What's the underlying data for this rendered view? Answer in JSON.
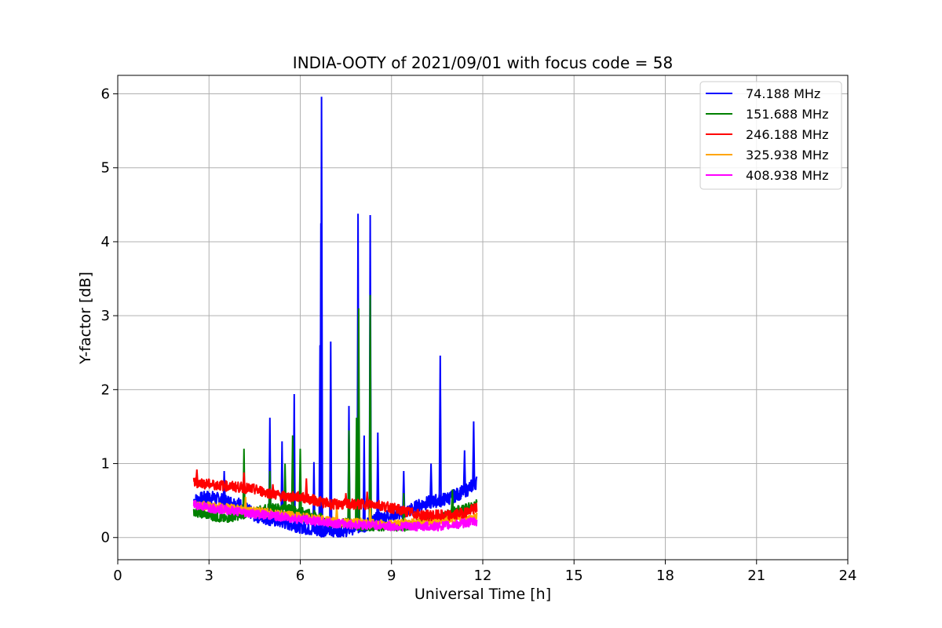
{
  "chart_data": {
    "type": "line",
    "title": "INDIA-OOTY of 2021/09/01 with focus code = 58",
    "xlabel": "Universal Time [h]",
    "ylabel": "Y-factor [dB]",
    "xlim": [
      0,
      24
    ],
    "ylim": [
      -0.3,
      6.25
    ],
    "x_ticks": [
      0,
      3,
      6,
      9,
      12,
      15,
      18,
      21,
      24
    ],
    "y_ticks": [
      0,
      1,
      2,
      3,
      4,
      5,
      6
    ],
    "grid": true,
    "legend_position": "top-right",
    "series": [
      {
        "name": "  74.188 MHz",
        "color": "#0000ff",
        "x": [
          2.5,
          3.0,
          3.5,
          4.0,
          4.5,
          5.0,
          5.5,
          6.0,
          6.5,
          6.7,
          7.0,
          7.5,
          7.9,
          8.1,
          8.3,
          8.5,
          9.0,
          9.5,
          10.0,
          10.5,
          10.6,
          11.0,
          11.5,
          11.8
        ],
        "values": [
          0.5,
          0.55,
          0.5,
          0.45,
          0.3,
          0.25,
          0.2,
          0.15,
          0.1,
          0.1,
          0.1,
          0.1,
          0.15,
          0.15,
          0.2,
          0.25,
          0.3,
          0.35,
          0.45,
          0.5,
          0.5,
          0.55,
          0.65,
          0.75
        ],
        "peaks": [
          [
            3.5,
            0.9
          ],
          [
            5.0,
            1.62
          ],
          [
            5.4,
            1.3
          ],
          [
            5.8,
            1.94
          ],
          [
            6.45,
            1.02
          ],
          [
            6.65,
            2.6
          ],
          [
            6.68,
            4.25
          ],
          [
            6.7,
            5.96
          ],
          [
            7.0,
            2.65
          ],
          [
            7.6,
            1.78
          ],
          [
            7.9,
            4.38
          ],
          [
            8.1,
            1.38
          ],
          [
            8.3,
            4.36
          ],
          [
            8.55,
            1.42
          ],
          [
            9.4,
            0.9
          ],
          [
            10.3,
            1.0
          ],
          [
            10.6,
            2.46
          ],
          [
            11.4,
            1.18
          ],
          [
            11.7,
            1.57
          ]
        ]
      },
      {
        "name": "151.688 MHz",
        "color": "#008000",
        "x": [
          2.5,
          3.0,
          3.5,
          4.0,
          4.5,
          5.0,
          5.5,
          6.0,
          6.5,
          7.0,
          7.5,
          8.0,
          8.5,
          9.0,
          9.5,
          10.0,
          10.5,
          11.0,
          11.5,
          11.8
        ],
        "values": [
          0.35,
          0.3,
          0.25,
          0.3,
          0.35,
          0.4,
          0.4,
          0.35,
          0.3,
          0.2,
          0.2,
          0.15,
          0.15,
          0.15,
          0.15,
          0.2,
          0.25,
          0.35,
          0.4,
          0.45
        ],
        "peaks": [
          [
            4.15,
            1.2
          ],
          [
            5.0,
            0.9
          ],
          [
            5.5,
            1.0
          ],
          [
            5.75,
            1.38
          ],
          [
            6.0,
            1.2
          ],
          [
            7.6,
            1.45
          ],
          [
            7.85,
            1.62
          ],
          [
            7.92,
            3.1
          ],
          [
            8.3,
            3.28
          ],
          [
            9.4,
            0.6
          ],
          [
            11.0,
            0.65
          ]
        ]
      },
      {
        "name": "246.188 MHz",
        "color": "#ff0000",
        "x": [
          2.5,
          3.0,
          3.5,
          4.0,
          4.5,
          5.0,
          5.5,
          6.0,
          6.5,
          7.0,
          7.5,
          8.0,
          8.5,
          9.0,
          9.5,
          10.0,
          10.5,
          11.0,
          11.5,
          11.8
        ],
        "values": [
          0.75,
          0.72,
          0.7,
          0.68,
          0.65,
          0.6,
          0.55,
          0.55,
          0.5,
          0.45,
          0.45,
          0.45,
          0.45,
          0.4,
          0.35,
          0.3,
          0.3,
          0.3,
          0.35,
          0.4
        ],
        "peaks": [
          [
            2.6,
            0.92
          ],
          [
            4.15,
            0.88
          ],
          [
            5.1,
            0.72
          ],
          [
            6.2,
            0.8
          ],
          [
            7.5,
            0.6
          ],
          [
            8.2,
            0.62
          ]
        ]
      },
      {
        "name": "325.938 MHz",
        "color": "#ffa500",
        "x": [
          2.5,
          3.0,
          3.5,
          4.0,
          4.5,
          5.0,
          5.5,
          6.0,
          6.5,
          7.0,
          7.5,
          8.0,
          8.5,
          9.0,
          9.5,
          10.0,
          10.5,
          11.0,
          11.5,
          11.8
        ],
        "values": [
          0.45,
          0.42,
          0.4,
          0.38,
          0.35,
          0.33,
          0.3,
          0.28,
          0.25,
          0.22,
          0.2,
          0.2,
          0.18,
          0.18,
          0.2,
          0.2,
          0.22,
          0.25,
          0.25,
          0.28
        ],
        "peaks": [
          [
            4.2,
            0.55
          ],
          [
            7.2,
            0.45
          ],
          [
            8.3,
            0.4
          ]
        ]
      },
      {
        "name": "408.938 MHz",
        "color": "#ff00ff",
        "x": [
          2.5,
          3.0,
          3.5,
          4.0,
          4.5,
          5.0,
          5.5,
          6.0,
          6.5,
          7.0,
          7.5,
          8.0,
          8.5,
          9.0,
          9.5,
          10.0,
          10.5,
          11.0,
          11.5,
          11.8
        ],
        "values": [
          0.45,
          0.4,
          0.38,
          0.35,
          0.32,
          0.3,
          0.27,
          0.25,
          0.22,
          0.2,
          0.18,
          0.17,
          0.17,
          0.15,
          0.15,
          0.15,
          0.15,
          0.17,
          0.2,
          0.22
        ],
        "peaks": []
      }
    ]
  }
}
